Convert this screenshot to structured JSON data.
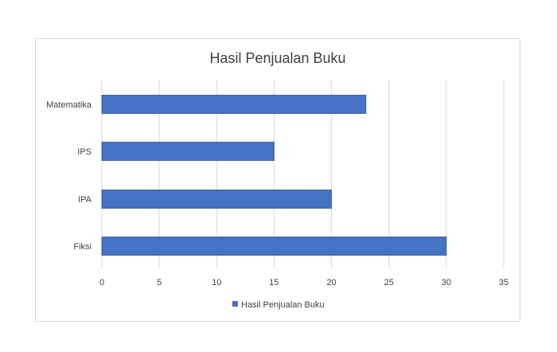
{
  "chart_data": {
    "type": "bar",
    "orientation": "horizontal",
    "title": "Hasil Penjualan Buku",
    "categories": [
      "Matematika",
      "IPS",
      "IPA",
      "Fiksi"
    ],
    "series": [
      {
        "name": "Hasil Penjualan Buku",
        "values": [
          23,
          15,
          20,
          30
        ],
        "color": "#4472c4"
      }
    ],
    "xlim": [
      0,
      35
    ],
    "xticks": [
      "0",
      "5",
      "10",
      "15",
      "20",
      "25",
      "30",
      "35"
    ],
    "grid": true,
    "legend": "bottom"
  }
}
